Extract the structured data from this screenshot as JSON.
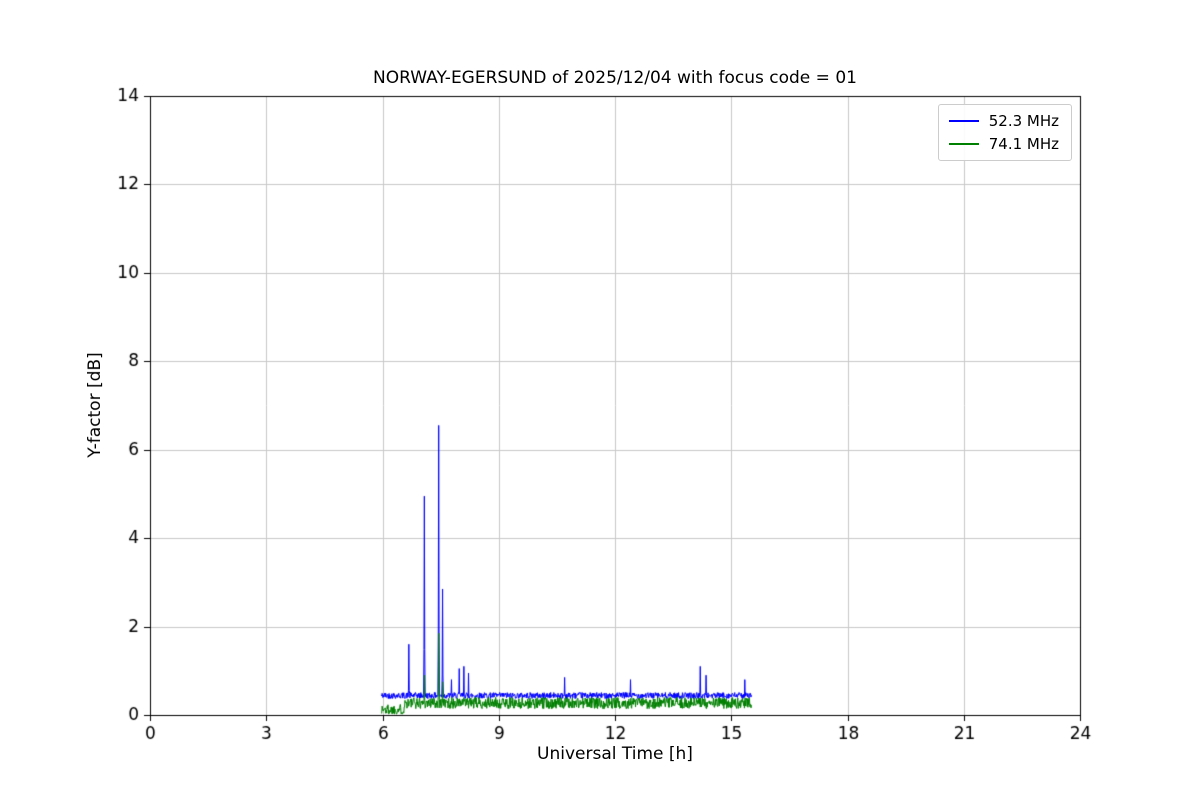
{
  "figure": {
    "background": "#ffffff"
  },
  "chart_data": {
    "type": "line",
    "title": "NORWAY-EGERSUND of 2025/12/04 with focus code = 01",
    "xlabel": "Universal Time [h]",
    "ylabel": "Y-factor [dB]",
    "xlim": [
      0,
      24
    ],
    "ylim": [
      0,
      14
    ],
    "xticks": [
      0,
      3,
      6,
      9,
      12,
      15,
      18,
      21,
      24
    ],
    "yticks": [
      0,
      2,
      4,
      6,
      8,
      10,
      12,
      14
    ],
    "grid": true,
    "grid_color": "#c8c8c8",
    "axis_color": "#000000",
    "legend_position": "upper right",
    "series": [
      {
        "name": "52.3 MHz",
        "color": "#0000ff",
        "x_start": 5.97,
        "x_end": 15.52,
        "step": 0.01,
        "baseline": 0.44,
        "noise_amplitude": 0.07,
        "seed": 42,
        "dips": [],
        "spikes": [
          {
            "x": 6.68,
            "y": 1.6
          },
          {
            "x": 7.08,
            "y": 4.95
          },
          {
            "x": 7.45,
            "y": 6.55
          },
          {
            "x": 7.55,
            "y": 2.85
          },
          {
            "x": 7.78,
            "y": 0.8
          },
          {
            "x": 7.98,
            "y": 1.05
          },
          {
            "x": 8.1,
            "y": 1.1
          },
          {
            "x": 8.22,
            "y": 0.95
          },
          {
            "x": 10.7,
            "y": 0.85
          },
          {
            "x": 12.4,
            "y": 0.8
          },
          {
            "x": 14.2,
            "y": 1.1
          },
          {
            "x": 14.35,
            "y": 0.9
          },
          {
            "x": 15.35,
            "y": 0.8
          }
        ]
      },
      {
        "name": "74.1 MHz",
        "color": "#008000",
        "x_start": 5.97,
        "x_end": 15.52,
        "step": 0.01,
        "baseline": 0.27,
        "noise_amplitude": 0.13,
        "seed": 1337,
        "dips": [
          {
            "x_start": 5.97,
            "x_end": 6.55,
            "level": 0.12
          }
        ],
        "spikes": [
          {
            "x": 7.08,
            "y": 0.9
          },
          {
            "x": 7.45,
            "y": 1.85
          },
          {
            "x": 7.55,
            "y": 0.75
          }
        ]
      }
    ]
  }
}
